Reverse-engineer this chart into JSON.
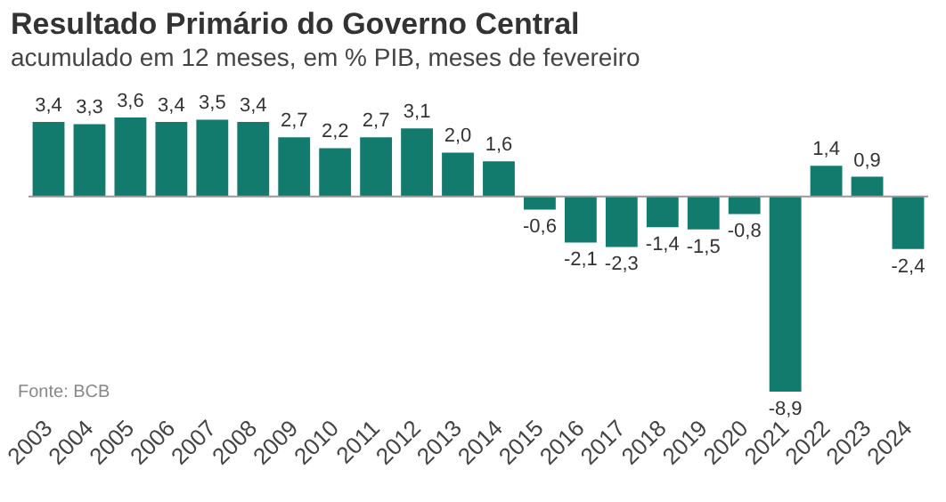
{
  "chart_data": {
    "type": "bar",
    "title": "Resultado Primário do Governo Central",
    "subtitle": "acumulado em 12 meses, em % PIB, meses de fevereiro",
    "categories": [
      "2003",
      "2004",
      "2005",
      "2006",
      "2007",
      "2008",
      "2009",
      "2010",
      "2011",
      "2012",
      "2013",
      "2014",
      "2015",
      "2016",
      "2017",
      "2018",
      "2019",
      "2020",
      "2021",
      "2022",
      "2023",
      "2024"
    ],
    "values": [
      3.4,
      3.3,
      3.6,
      3.4,
      3.5,
      3.4,
      2.7,
      2.2,
      2.7,
      3.1,
      2.0,
      1.6,
      -0.6,
      -2.1,
      -2.3,
      -1.4,
      -1.5,
      -0.8,
      -8.9,
      1.4,
      0.9,
      -2.4
    ],
    "value_labels": [
      "3,4",
      "3,3",
      "3,6",
      "3,4",
      "3,5",
      "3,4",
      "2,7",
      "2,2",
      "2,7",
      "3,1",
      "2,0",
      "1,6",
      "-0,6",
      "-2,1",
      "-2,3",
      "-1,4",
      "-1,5",
      "-0,8",
      "-8,9",
      "1,4",
      "0,9",
      "-2,4"
    ],
    "color": "#137a6e",
    "annotations": [
      "Fonte: BCB"
    ]
  }
}
